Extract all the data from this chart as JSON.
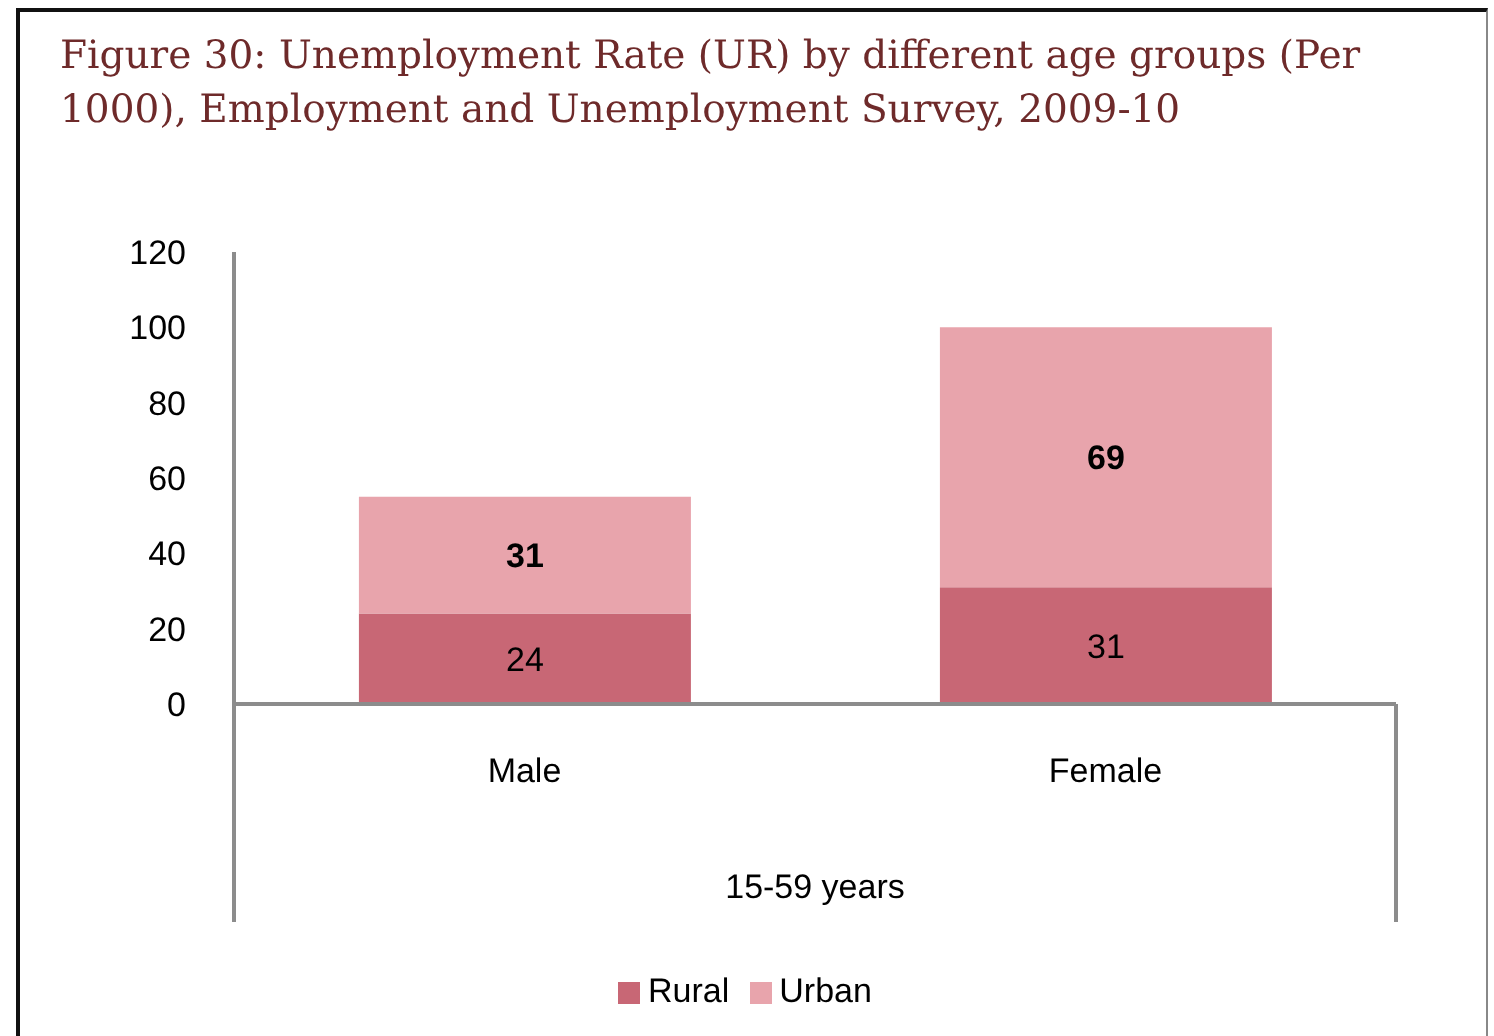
{
  "chart_data": {
    "type": "bar",
    "title": "Figure 30: Unemployment Rate (UR) by different age groups (Per 1000), Employment and Unemployment Survey, 2009-10",
    "xlabel": "15-59 years",
    "categories": [
      "Male",
      "Female"
    ],
    "series": [
      {
        "name": "Rural",
        "color": "#c86775",
        "values": [
          24,
          31
        ]
      },
      {
        "name": "Urban",
        "color": "#e8a4ac",
        "values": [
          31,
          69
        ]
      }
    ],
    "stacked": true,
    "ylim": [
      0,
      120
    ],
    "yticks": [
      0,
      20,
      40,
      60,
      80,
      100,
      120
    ],
    "data_labels": true,
    "legend": "bottom",
    "grid": false
  }
}
